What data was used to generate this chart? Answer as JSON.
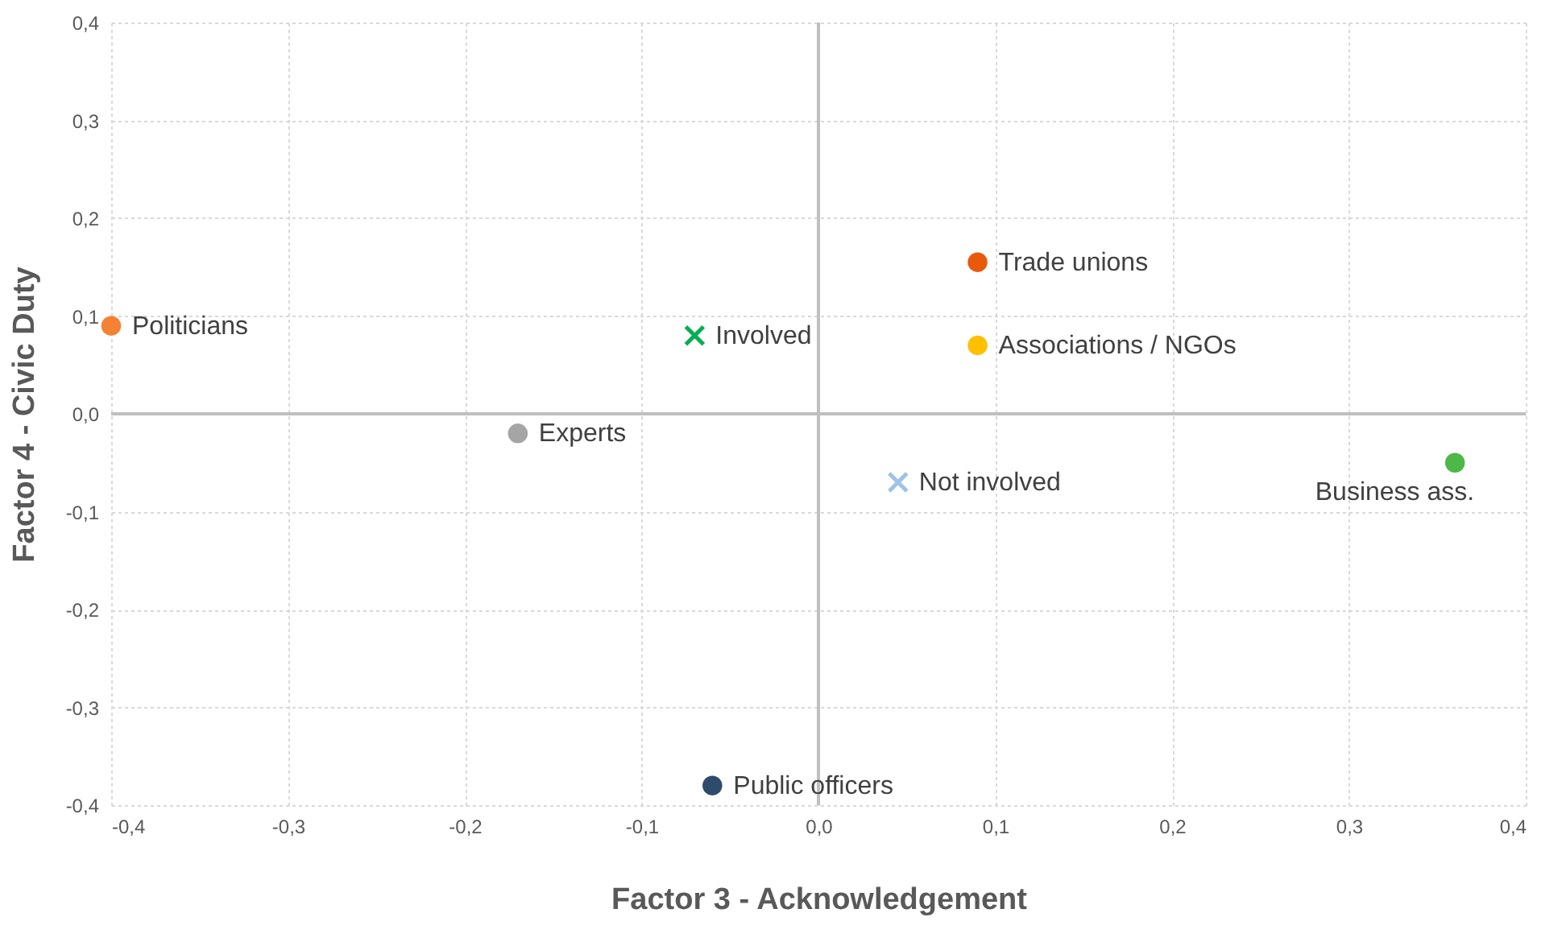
{
  "chart_data": {
    "type": "scatter",
    "xlabel": "Factor 3 - Acknowledgement",
    "ylabel": "Factor 4 - Civic Duty",
    "xlim": [
      -0.4,
      0.4
    ],
    "ylim": [
      -0.4,
      0.4
    ],
    "xticks": [
      {
        "value": -0.4,
        "label": "-0,4"
      },
      {
        "value": -0.3,
        "label": "-0,3"
      },
      {
        "value": -0.2,
        "label": "-0,2"
      },
      {
        "value": -0.1,
        "label": "-0,1"
      },
      {
        "value": 0,
        "label": "0,0"
      },
      {
        "value": 0.1,
        "label": "0,1"
      },
      {
        "value": 0.2,
        "label": "0,2"
      },
      {
        "value": 0.3,
        "label": "0,3"
      },
      {
        "value": 0.4,
        "label": "0,4"
      }
    ],
    "yticks": [
      {
        "value": -0.4,
        "label": "-0,4"
      },
      {
        "value": -0.3,
        "label": "-0,3"
      },
      {
        "value": -0.2,
        "label": "-0,2"
      },
      {
        "value": -0.1,
        "label": "-0,1"
      },
      {
        "value": 0,
        "label": "0,0"
      },
      {
        "value": 0.1,
        "label": "0,1"
      },
      {
        "value": 0.2,
        "label": "0,2"
      },
      {
        "value": 0.3,
        "label": "0,3"
      },
      {
        "value": 0.4,
        "label": "0,4"
      }
    ],
    "grid": true,
    "legend": false,
    "series": [
      {
        "name": "Politicians",
        "color": "#f58232",
        "marker": "circle",
        "x": [
          -0.4
        ],
        "values": [
          0.09
        ]
      },
      {
        "name": "Involved",
        "color": "#00b050",
        "marker": "cross",
        "x": [
          -0.07
        ],
        "values": [
          0.08
        ]
      },
      {
        "name": "Trade unions",
        "color": "#e8590c",
        "marker": "circle",
        "x": [
          0.09
        ],
        "values": [
          0.155
        ]
      },
      {
        "name": "Associations / NGOs",
        "color": "#ffc000",
        "marker": "circle",
        "x": [
          0.09
        ],
        "values": [
          0.07
        ]
      },
      {
        "name": "Experts",
        "color": "#a5a5a5",
        "marker": "circle",
        "x": [
          -0.17
        ],
        "values": [
          -0.02
        ]
      },
      {
        "name": "Not involved",
        "color": "#9dc3e6",
        "marker": "cross",
        "x": [
          0.045
        ],
        "values": [
          -0.07
        ]
      },
      {
        "name": "Business ass.",
        "color": "#4cb848",
        "marker": "circle",
        "x": [
          0.36
        ],
        "values": [
          -0.05
        ]
      },
      {
        "name": "Public officers",
        "color": "#2f4b6c",
        "marker": "circle",
        "x": [
          -0.06
        ],
        "values": [
          -0.38
        ]
      }
    ]
  }
}
